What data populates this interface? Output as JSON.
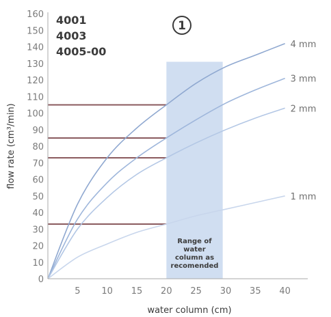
{
  "chart_data": {
    "type": "line",
    "xlabel": "water column (cm)",
    "ylabel": "flow rate (cm³/min)",
    "xlim": [
      0,
      45
    ],
    "ylim": [
      0,
      165
    ],
    "x_ticks": [
      5,
      10,
      15,
      20,
      25,
      30,
      35,
      40
    ],
    "y_ticks": [
      10,
      20,
      30,
      40,
      50,
      60,
      70,
      80,
      90,
      100,
      110,
      120,
      130,
      140,
      150,
      160
    ],
    "zero_label": "0",
    "grid": false,
    "models": [
      "4001",
      "4003",
      "4005-00"
    ],
    "badge": "1",
    "range_band": {
      "x_from": 20,
      "x_to": 29.5,
      "y_to": 131,
      "label": [
        "Range of",
        "water",
        "column as",
        "recomended"
      ],
      "color": "#c8d8ee"
    },
    "reference_lines": [
      {
        "y": 105,
        "x_from": 0,
        "x_to": 20
      },
      {
        "y": 85,
        "x_from": 0,
        "x_to": 20
      },
      {
        "y": 73,
        "x_from": 0,
        "x_to": 20
      },
      {
        "y": 33,
        "x_from": 0,
        "x_to": 20
      }
    ],
    "series": [
      {
        "name": "4 mm",
        "color": "#8fa8d0",
        "x": [
          0,
          5,
          10,
          15,
          20,
          25,
          30,
          35,
          40
        ],
        "values": [
          0,
          45,
          73,
          91,
          105,
          118,
          128,
          135,
          142
        ]
      },
      {
        "name": "3 mm",
        "color": "#9eb6db",
        "x": [
          0,
          5,
          10,
          15,
          20,
          25,
          30,
          35,
          40
        ],
        "values": [
          0,
          36,
          58,
          73,
          85,
          96,
          106,
          114,
          121
        ]
      },
      {
        "name": "2 mm",
        "color": "#b3c7e5",
        "x": [
          0,
          5,
          10,
          15,
          20,
          25,
          30,
          35,
          40
        ],
        "values": [
          0,
          30,
          49,
          63,
          73,
          82,
          90,
          97,
          103
        ]
      },
      {
        "name": "1 mm",
        "color": "#c8d6ec",
        "x": [
          0,
          5,
          10,
          15,
          20,
          25,
          30,
          35,
          40
        ],
        "values": [
          0,
          13,
          21,
          28,
          33,
          38,
          42,
          46,
          50
        ]
      }
    ]
  }
}
